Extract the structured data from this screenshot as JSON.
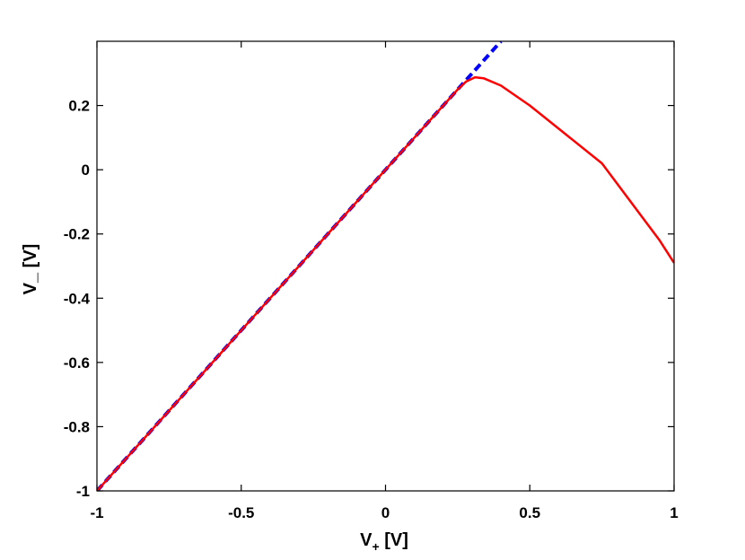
{
  "chart_data": {
    "type": "line",
    "title": "",
    "xlabel": {
      "main": "V",
      "sub": "+",
      "unit": " [V]"
    },
    "ylabel": {
      "main": "V",
      "sub": "_",
      "unit": " [V]"
    },
    "xlim": [
      -1,
      1
    ],
    "ylim": [
      -1,
      0.4
    ],
    "xticks": [
      -1,
      -0.5,
      0,
      0.5,
      1
    ],
    "xtick_labels": [
      "-1",
      "-0.5",
      "0",
      "0.5",
      "1"
    ],
    "yticks": [
      -1,
      -0.8,
      -0.6,
      -0.4,
      -0.2,
      0,
      0.2
    ],
    "ytick_labels": [
      "-1",
      "-0.8",
      "-0.6",
      "-0.4",
      "-0.2",
      "0",
      "0.2"
    ],
    "grid": false,
    "series": [
      {
        "style": "dashed",
        "color": "#0000ff",
        "x": [
          -1,
          0.4
        ],
        "y": [
          -1,
          0.4
        ]
      },
      {
        "style": "solid",
        "color": "#ff0000",
        "x": [
          -1,
          -0.5,
          0,
          0.25,
          0.28,
          0.31,
          0.34,
          0.4,
          0.5,
          0.75,
          0.95,
          1.0
        ],
        "y": [
          -1,
          -0.5,
          0,
          0.25,
          0.275,
          0.288,
          0.285,
          0.262,
          0.2,
          0.02,
          -0.22,
          -0.29
        ]
      }
    ]
  }
}
